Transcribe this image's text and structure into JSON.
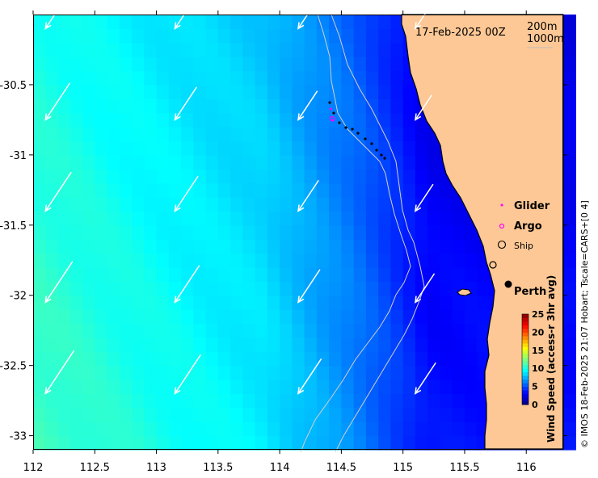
{
  "map": {
    "date_label": "17-Feb-2025 00Z",
    "contour_legend": [
      "200m",
      "1000m"
    ],
    "credit": "© IMOS 18-Feb-2025 21:07 Hobart; Tscale=CARS+[0 4]",
    "x_ticks": [
      "112",
      "112.5",
      "113",
      "113.5",
      "114",
      "114.5",
      "115",
      "115.5",
      "116"
    ],
    "y_ticks": [
      "-30.5",
      "-31",
      "-31.5",
      "-32",
      "-32.5",
      "-33"
    ],
    "x_range": [
      112,
      116.3
    ],
    "y_range": [
      -33.1,
      -30.0
    ],
    "colorbar": {
      "label": "Wind Speed (access-r 3hr avg)",
      "ticks": [
        "0",
        "5",
        "10",
        "15",
        "20",
        "25"
      ],
      "range": [
        0,
        25
      ]
    },
    "legend": {
      "glider": "Glider",
      "argo": "Argo",
      "ship": "Ship"
    },
    "place_label": "Perth",
    "colors": {
      "land": "#fdc895",
      "glider": "#ff00ff",
      "argo": "#ff00ff",
      "vectors": "#ffffff",
      "contours": "#c8c8c8"
    }
  }
}
